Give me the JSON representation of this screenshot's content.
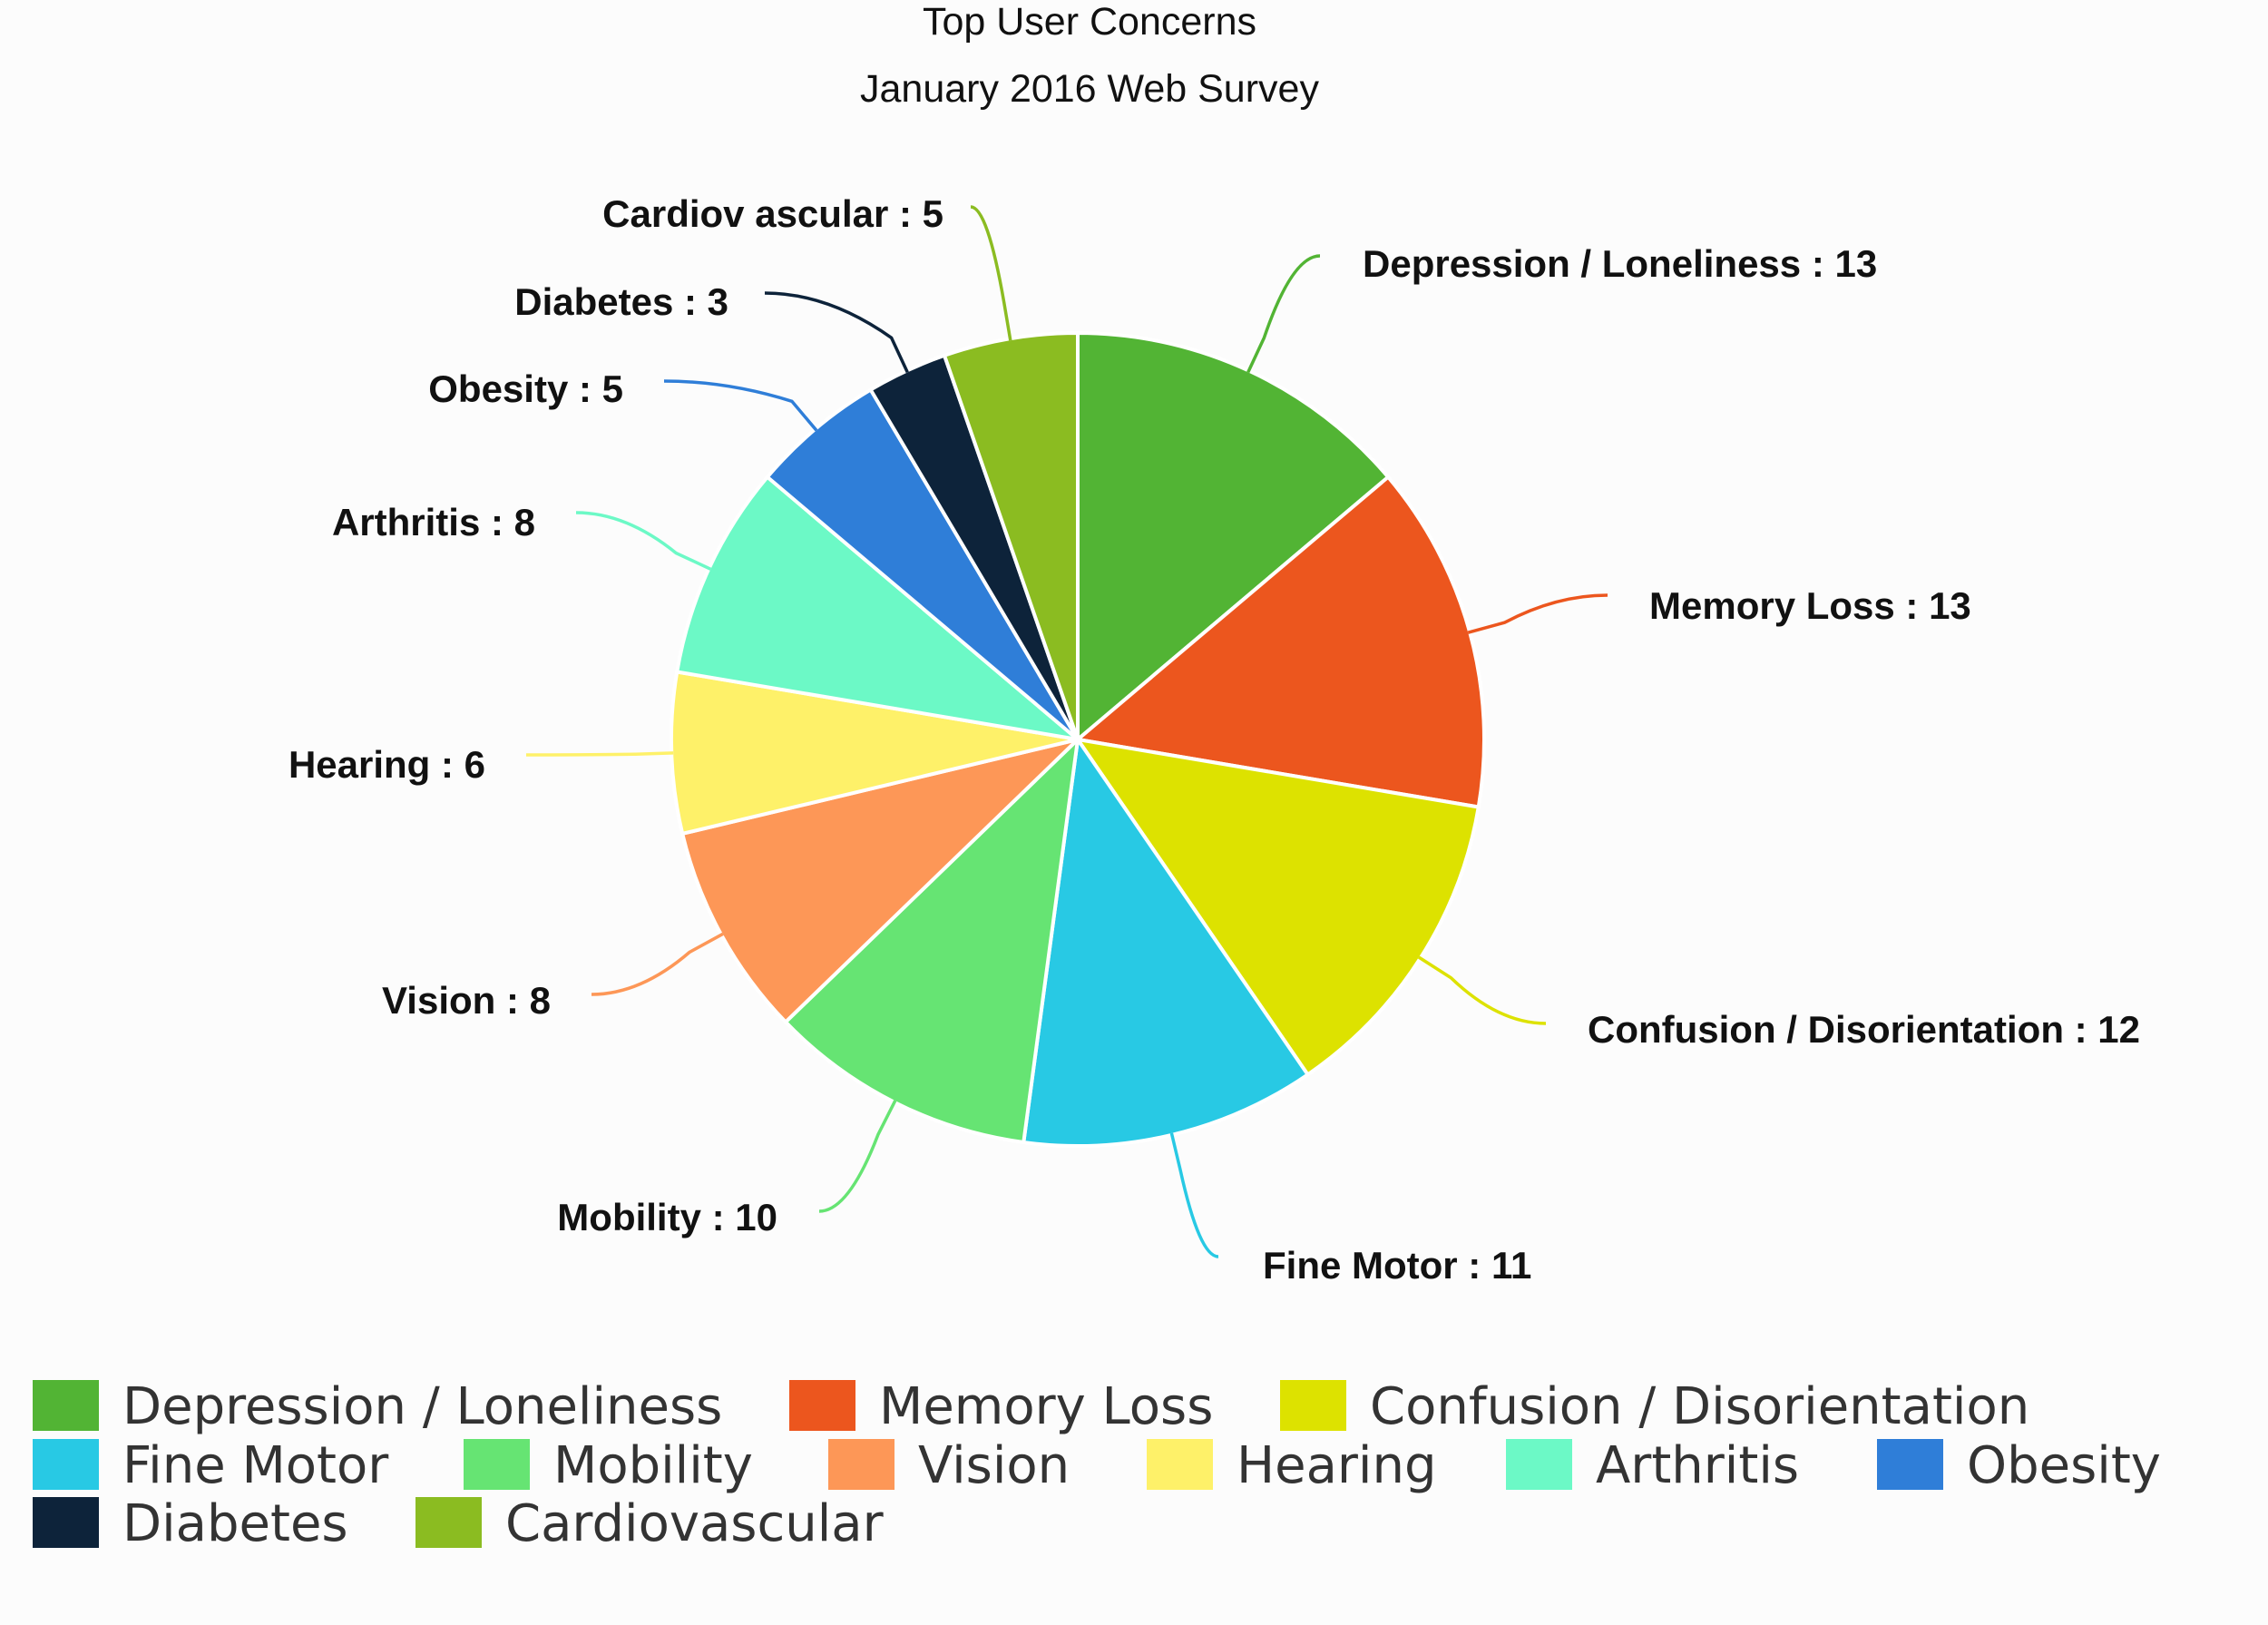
{
  "chart_data": {
    "type": "pie",
    "title": "Top User Concerns",
    "subtitle": "January 2016 Web Survey",
    "label_separator": " : ",
    "slices": [
      {
        "name": "Depression / Loneliness",
        "value": 13,
        "color": "#52b434"
      },
      {
        "name": "Memory Loss",
        "value": 13,
        "color": "#ec561e"
      },
      {
        "name": "Confusion / Disorientation",
        "value": 12,
        "color": "#dde200"
      },
      {
        "name": "Fine Motor",
        "value": 11,
        "color": "#28c9e4"
      },
      {
        "name": "Mobility",
        "value": 10,
        "color": "#66e473"
      },
      {
        "name": "Vision",
        "value": 8,
        "color": "#fd9757"
      },
      {
        "name": "Hearing",
        "value": 6,
        "color": "#fef169"
      },
      {
        "name": "Arthritis",
        "value": 8,
        "color": "#6cf9c6"
      },
      {
        "name": "Obesity",
        "value": 5,
        "color": "#2f7ed8"
      },
      {
        "name": "Diabetes",
        "value": 3,
        "color": "#0d233a"
      },
      {
        "name": "Cardiovascular",
        "value": 5,
        "color": "#8bbc21"
      }
    ],
    "slice_labels": [
      "Depression / Loneliness : 13",
      "Memory Loss : 13",
      "Confusion / Disorientation : 12",
      "Fine Motor : 11",
      "Mobility : 10",
      "Vision : 8",
      "Hearing : 6",
      "Arthritis : 8",
      "Obesity : 5",
      "Diabetes : 3",
      "Cardiov ascular : 5"
    ],
    "legend": {
      "position": "bottom-left",
      "entries": [
        "Depression / Loneliness",
        "Memory Loss",
        "Confusion / Disorientation",
        "Fine Motor",
        "Mobility",
        "Vision",
        "Hearing",
        "Arthritis",
        "Obesity",
        "Diabetes",
        "Cardiovascular"
      ]
    }
  }
}
